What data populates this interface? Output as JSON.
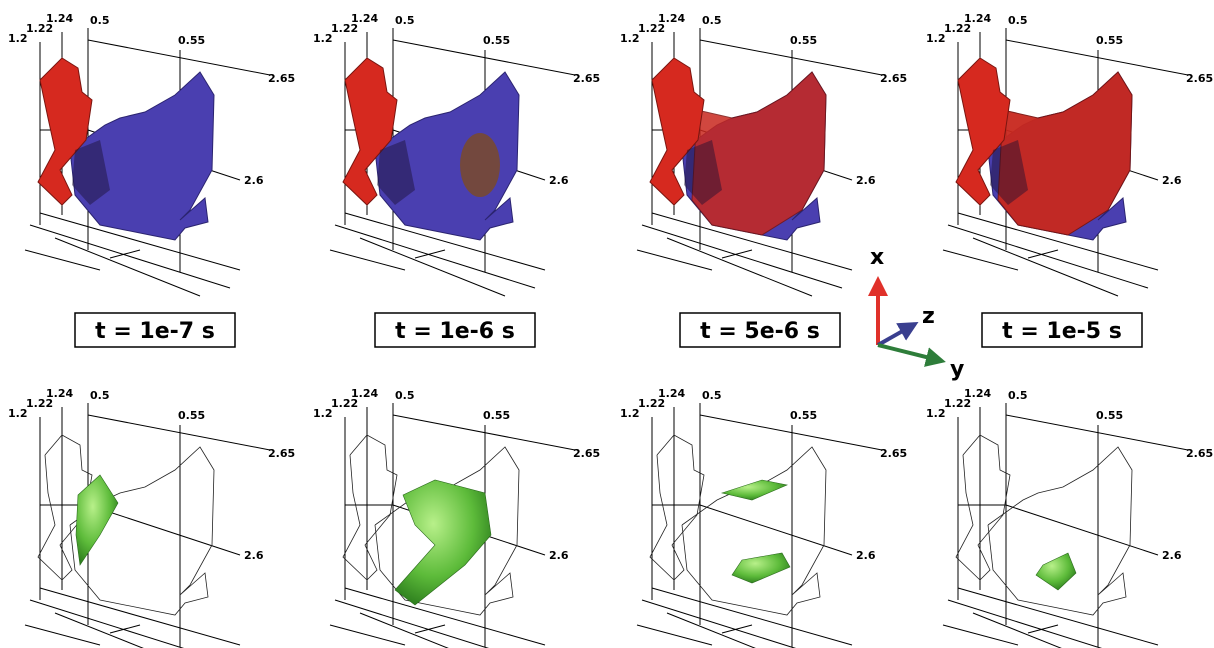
{
  "panels": [
    {
      "labels": {
        "y1": "1.2",
        "y2": "1.22",
        "y3": "1.24",
        "x1": "0.5",
        "x2": "0.55",
        "z1": "2.65",
        "z2": "2.6"
      }
    },
    {
      "labels": {
        "y1": "1.2",
        "y2": "1.22",
        "y3": "1.24",
        "x1": "0.5",
        "x2": "0.55",
        "z1": "2.65",
        "z2": "2.6"
      }
    },
    {
      "labels": {
        "y1": "1.2",
        "y2": "1.22",
        "y3": "1.24",
        "x1": "0.5",
        "x2": "0.55",
        "z1": "2.65",
        "z2": "2.6"
      }
    },
    {
      "labels": {
        "y1": "1.2",
        "y2": "1.22",
        "y3": "1.24",
        "x1": "0.5",
        "x2": "0.55",
        "z1": "2.65",
        "z2": "2.6"
      }
    },
    {
      "labels": {
        "y1": "1.2",
        "y2": "1.22",
        "y3": "1.24",
        "x1": "0.5",
        "x2": "0.55",
        "z1": "2.65",
        "z2": "2.6"
      }
    },
    {
      "labels": {
        "y1": "1.2",
        "y2": "1.22",
        "y3": "1.24",
        "x1": "0.5",
        "x2": "0.55",
        "z1": "2.65",
        "z2": "2.6"
      }
    },
    {
      "labels": {
        "y1": "1.2",
        "y2": "1.22",
        "y3": "1.24",
        "x1": "0.5",
        "x2": "0.55",
        "z1": "2.65",
        "z2": "2.6"
      }
    },
    {
      "labels": {
        "y1": "1.2",
        "y2": "1.22",
        "y3": "1.24",
        "x1": "0.5",
        "x2": "0.55",
        "z1": "2.65",
        "z2": "2.6"
      }
    }
  ],
  "time_labels": [
    "t = 1e-7 s",
    "t = 1e-6 s",
    "t = 5e-6 s",
    "t = 1e-5 s"
  ],
  "triad": {
    "x": "x",
    "y": "y",
    "z": "z"
  }
}
